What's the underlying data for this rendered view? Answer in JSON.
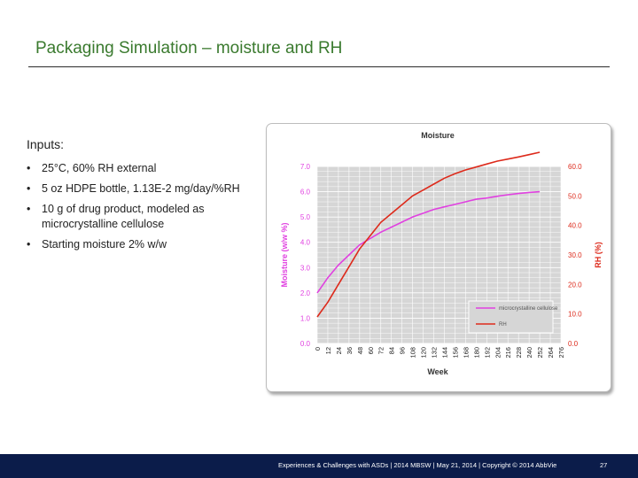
{
  "slide": {
    "title": "Packaging Simulation – moisture and RH",
    "inputs_heading": "Inputs:",
    "bullet_symbol": "•",
    "bullets": [
      "25°C, 60% RH external",
      "5 oz HDPE bottle, 1.13E-2 mg/day/%RH",
      "10 g of drug product, modeled as microcrystalline cellulose",
      "Starting moisture 2% w/w"
    ]
  },
  "footer": {
    "text": "Experiences & Challenges with ASDs | 2014 MBSW | May 21, 2014 | Copyright © 2014 AbbVie",
    "page": "27",
    "background": "#0b1c4a"
  },
  "chart_data": {
    "type": "line",
    "title": "Moisture",
    "xlabel": "Week",
    "ylabel": "Moisture (w/w %)",
    "y2label": "RH (%)",
    "x": [
      0,
      12,
      24,
      36,
      48,
      60,
      72,
      84,
      96,
      108,
      120,
      132,
      144,
      156,
      168,
      180,
      192,
      204,
      216,
      228,
      240,
      252,
      264,
      276
    ],
    "x_ticks": [
      "0",
      "12",
      "24",
      "36",
      "48",
      "60",
      "72",
      "84",
      "96",
      "108",
      "120",
      "132",
      "144",
      "156",
      "168",
      "180",
      "192",
      "204",
      "216",
      "228",
      "240",
      "252",
      "264",
      "276"
    ],
    "ylim": [
      0,
      7
    ],
    "y_ticks": [
      "0.0",
      "1.0",
      "2.0",
      "3.0",
      "4.0",
      "5.0",
      "6.0",
      "7.0"
    ],
    "y2lim": [
      0,
      60
    ],
    "y2_ticks": [
      "0.0",
      "10.0",
      "20.0",
      "30.0",
      "40.0",
      "50.0",
      "60.0"
    ],
    "grid": true,
    "legend_position": "bottom-right",
    "series": [
      {
        "name": "microcrystalline cellulose",
        "axis": "left",
        "color": "#e040e0",
        "x": [
          0,
          12,
          24,
          36,
          48,
          60,
          72,
          84,
          96,
          108,
          120,
          132,
          144,
          156,
          168,
          180,
          192,
          204,
          216,
          228,
          240,
          252
        ],
        "values": [
          2.0,
          2.6,
          3.1,
          3.5,
          3.9,
          4.15,
          4.4,
          4.6,
          4.8,
          5.0,
          5.15,
          5.3,
          5.4,
          5.5,
          5.6,
          5.7,
          5.75,
          5.82,
          5.88,
          5.93,
          5.97,
          6.0
        ]
      },
      {
        "name": "RH",
        "axis": "right",
        "color": "#dd2a1b",
        "x": [
          0,
          12,
          24,
          36,
          48,
          60,
          72,
          84,
          96,
          108,
          120,
          132,
          144,
          156,
          168,
          180,
          192,
          204,
          216,
          228,
          240,
          252
        ],
        "values": [
          9.0,
          14.0,
          20.0,
          26.0,
          32.0,
          36.5,
          41.0,
          44.0,
          47.0,
          50.0,
          52.0,
          54.0,
          56.0,
          57.5,
          58.8,
          59.8,
          60.8,
          61.8,
          62.5,
          63.2,
          64.0,
          64.8
        ]
      }
    ]
  }
}
